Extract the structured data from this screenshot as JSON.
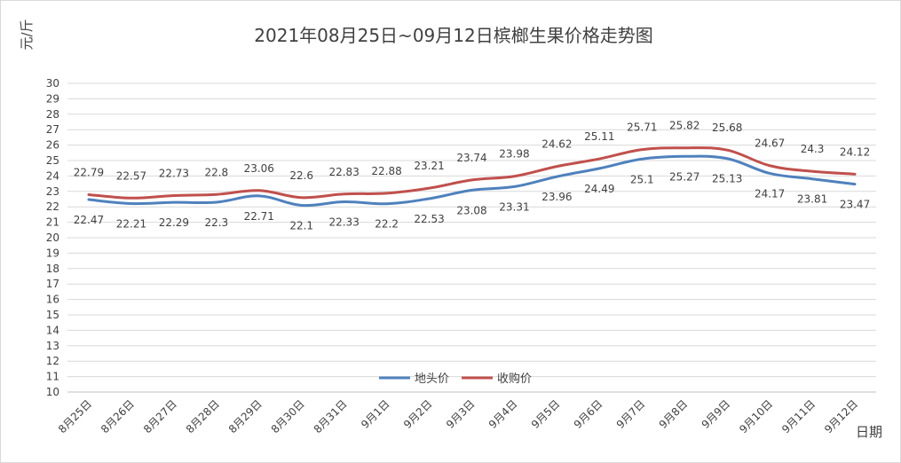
{
  "chart_data": {
    "type": "line",
    "title": "2021年08月25日~09月12日槟榔生果价格走势图",
    "ylabel": "元/斤",
    "xlabel": "日期",
    "ylim": [
      10,
      30
    ],
    "ystep": 1,
    "grid": true,
    "legend_position": "bottom-center",
    "categories": [
      "8月25日",
      "8月26日",
      "8月27日",
      "8月28日",
      "8月29日",
      "8月30日",
      "8月31日",
      "9月1日",
      "9月2日",
      "9月3日",
      "9月4日",
      "9月5日",
      "9月6日",
      "9月7日",
      "9月8日",
      "9月9日",
      "9月10日",
      "9月11日",
      "9月12日"
    ],
    "series": [
      {
        "name": "地头价",
        "color": "#4f81bd",
        "label_position": "below",
        "values": [
          22.47,
          22.21,
          22.29,
          22.3,
          22.71,
          22.1,
          22.33,
          22.2,
          22.53,
          23.08,
          23.31,
          23.96,
          24.49,
          25.1,
          25.27,
          25.13,
          24.17,
          23.81,
          23.47
        ]
      },
      {
        "name": "收购价",
        "color": "#c0504d",
        "label_position": "above",
        "values": [
          22.79,
          22.57,
          22.73,
          22.8,
          23.06,
          22.6,
          22.83,
          22.88,
          23.21,
          23.74,
          23.98,
          24.62,
          25.11,
          25.71,
          25.82,
          25.68,
          24.67,
          24.3,
          24.12
        ]
      }
    ]
  }
}
